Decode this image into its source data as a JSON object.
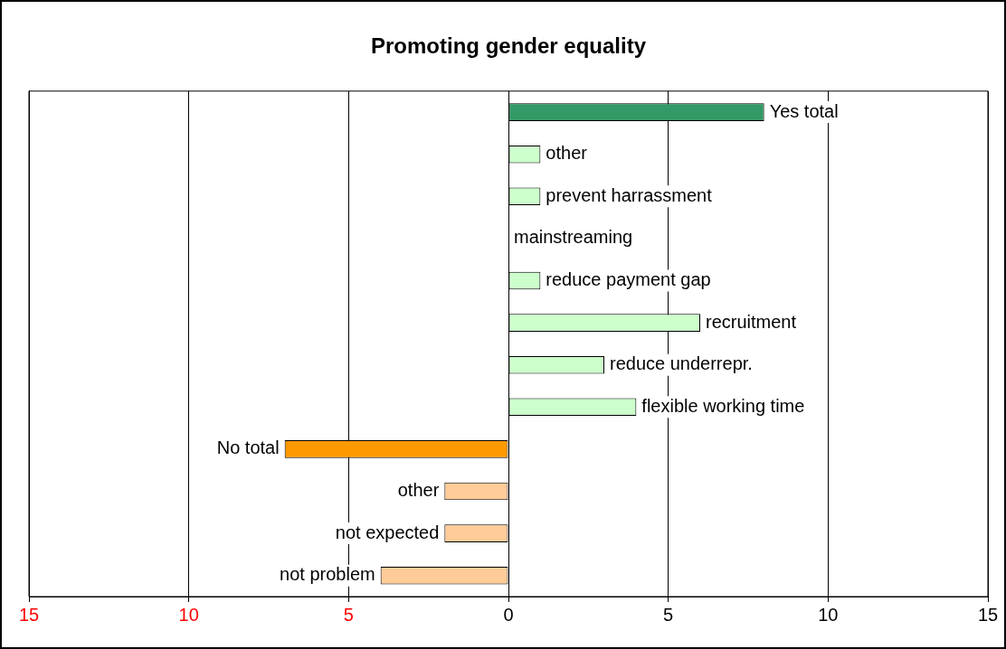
{
  "chart_data": {
    "type": "bar",
    "orientation": "horizontal",
    "title": "Promoting gender equality",
    "categories": [
      "Yes total",
      "other",
      "prevent harrassment",
      "mainstreaming",
      "reduce payment gap",
      "recruitment",
      "reduce underrepr.",
      "flexible working time",
      "No total",
      "other",
      "not expected",
      "not problem"
    ],
    "values": [
      8,
      1,
      1,
      0,
      1,
      6,
      3,
      4,
      -7,
      -2,
      -2,
      -4
    ],
    "colors": [
      "#339966",
      "#ccffcc",
      "#ccffcc",
      "#ccffcc",
      "#ccffcc",
      "#ccffcc",
      "#ccffcc",
      "#ccffcc",
      "#ff9900",
      "#ffcc99",
      "#ffcc99",
      "#ffcc99"
    ],
    "xlim": [
      -15,
      15
    ],
    "xticks": [
      {
        "value": -15,
        "label": "15"
      },
      {
        "value": -10,
        "label": "10"
      },
      {
        "value": -5,
        "label": "5"
      },
      0,
      5,
      10,
      15
    ],
    "grid": "x",
    "legend": false,
    "tick_labels": "x"
  }
}
